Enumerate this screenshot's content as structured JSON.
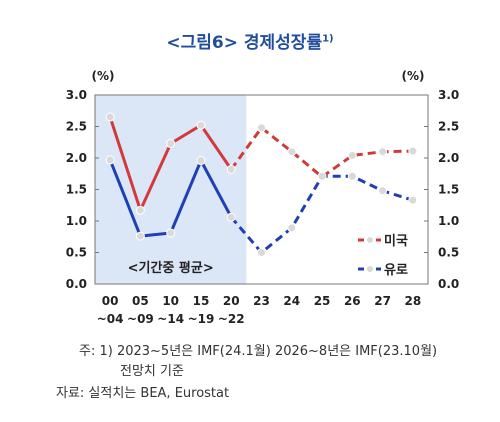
{
  "title": "<그림6> 경제성장률",
  "title_sup": "1)",
  "chart_data": {
    "type": "line",
    "y_unit_left": "(%)",
    "y_unit_right": "(%)",
    "ylim": [
      0.0,
      3.0
    ],
    "y_ticks": [
      "0.0",
      "0.5",
      "1.0",
      "1.5",
      "2.0",
      "2.5",
      "3.0"
    ],
    "categories": [
      {
        "top": "00",
        "bottom": "~04"
      },
      {
        "top": "05",
        "bottom": "~09"
      },
      {
        "top": "10",
        "bottom": "~14"
      },
      {
        "top": "15",
        "bottom": "~19"
      },
      {
        "top": "20",
        "bottom": "~22"
      },
      {
        "top": "23",
        "bottom": ""
      },
      {
        "top": "24",
        "bottom": ""
      },
      {
        "top": "25",
        "bottom": ""
      },
      {
        "top": "26",
        "bottom": ""
      },
      {
        "top": "27",
        "bottom": ""
      },
      {
        "top": "28",
        "bottom": ""
      }
    ],
    "shaded_region_label": "<기간중 평균>",
    "shaded_region_categories": [
      0,
      4
    ],
    "solid_until_index": 5,
    "series": [
      {
        "name": "미국",
        "color": "#d23a3a",
        "values": [
          2.65,
          1.17,
          2.23,
          2.52,
          1.82,
          2.48,
          2.1,
          1.7,
          2.04,
          2.1,
          2.11
        ]
      },
      {
        "name": "유로",
        "color": "#1f3fb5",
        "values": [
          1.97,
          0.76,
          0.81,
          1.96,
          1.06,
          0.5,
          0.89,
          1.71,
          1.71,
          1.48,
          1.33
        ]
      }
    ]
  },
  "notes": {
    "line1": "주: 1) 2023~5년은 IMF(24.1월) 2026~8년은 IMF(23.10월)",
    "line2": "전망치 기준",
    "line3": "자료: 실적치는 BEA, Eurostat"
  }
}
